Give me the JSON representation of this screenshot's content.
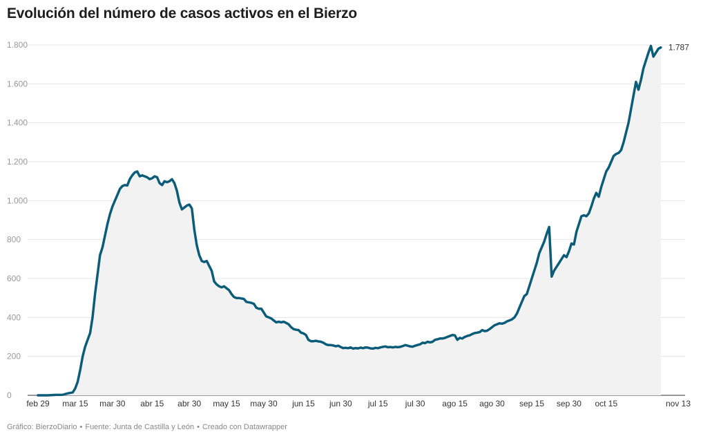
{
  "header": {
    "title": "Evolución del número de casos activos en el Bierzo"
  },
  "footer": {
    "chart_credit": "Gráfico: BierzoDiario",
    "source": "Fuente: Junta de Castilla y León",
    "tool": "Creado con Datawrapper",
    "separator": "•"
  },
  "colors": {
    "line": "#0b5c78",
    "area": "#f2f2f2",
    "grid": "#e5e5e5",
    "axis": "#333333"
  },
  "chart_data": {
    "type": "area",
    "title": "Evolución del número de casos activos en el Bierzo",
    "xlabel": "",
    "ylabel": "",
    "x_start": "2020-02-29",
    "ylim": [
      0,
      1800
    ],
    "y_ticks": [
      0,
      200,
      400,
      600,
      800,
      1000,
      1200,
      1400,
      1600,
      1800
    ],
    "y_tick_labels": [
      "0",
      "200",
      "400",
      "600",
      "800",
      "1.000",
      "1.200",
      "1.400",
      "1.600",
      "1.800"
    ],
    "x_ticks": [
      {
        "date": "2020-02-29",
        "label": "feb 29"
      },
      {
        "date": "2020-03-15",
        "label": "mar 15"
      },
      {
        "date": "2020-03-30",
        "label": "mar 30"
      },
      {
        "date": "2020-04-15",
        "label": "abr 15"
      },
      {
        "date": "2020-04-30",
        "label": "abr 30"
      },
      {
        "date": "2020-05-15",
        "label": "may 15"
      },
      {
        "date": "2020-05-30",
        "label": "may 30"
      },
      {
        "date": "2020-06-15",
        "label": "jun 15"
      },
      {
        "date": "2020-06-30",
        "label": "jun 30"
      },
      {
        "date": "2020-07-15",
        "label": "jul 15"
      },
      {
        "date": "2020-07-30",
        "label": "jul 30"
      },
      {
        "date": "2020-08-15",
        "label": "ago 15"
      },
      {
        "date": "2020-08-30",
        "label": "ago 30"
      },
      {
        "date": "2020-09-15",
        "label": "sep 15"
      },
      {
        "date": "2020-09-30",
        "label": "sep 30"
      },
      {
        "date": "2020-10-15",
        "label": "oct 15"
      },
      {
        "date": "2020-11-13",
        "label": "nov 13"
      }
    ],
    "grid": true,
    "end_label": "1.787",
    "series": [
      {
        "name": "",
        "points": [
          [
            "2020-02-29",
            0
          ],
          [
            "2020-03-04",
            0
          ],
          [
            "2020-03-07",
            2
          ],
          [
            "2020-03-10",
            3
          ],
          [
            "2020-03-12",
            10
          ],
          [
            "2020-03-14",
            15
          ],
          [
            "2020-03-15",
            35
          ],
          [
            "2020-03-16",
            70
          ],
          [
            "2020-03-17",
            130
          ],
          [
            "2020-03-18",
            200
          ],
          [
            "2020-03-19",
            250
          ],
          [
            "2020-03-20",
            285
          ],
          [
            "2020-03-21",
            320
          ],
          [
            "2020-03-22",
            400
          ],
          [
            "2020-03-23",
            520
          ],
          [
            "2020-03-24",
            620
          ],
          [
            "2020-03-25",
            720
          ],
          [
            "2020-03-26",
            760
          ],
          [
            "2020-03-27",
            820
          ],
          [
            "2020-03-28",
            880
          ],
          [
            "2020-03-29",
            930
          ],
          [
            "2020-03-30",
            970
          ],
          [
            "2020-04-01",
            1030
          ],
          [
            "2020-04-02",
            1060
          ],
          [
            "2020-04-03",
            1075
          ],
          [
            "2020-04-04",
            1080
          ],
          [
            "2020-04-05",
            1078
          ],
          [
            "2020-04-06",
            1110
          ],
          [
            "2020-04-07",
            1130
          ],
          [
            "2020-04-08",
            1145
          ],
          [
            "2020-04-09",
            1150
          ],
          [
            "2020-04-10",
            1125
          ],
          [
            "2020-04-11",
            1130
          ],
          [
            "2020-04-12",
            1125
          ],
          [
            "2020-04-13",
            1120
          ],
          [
            "2020-04-14",
            1110
          ],
          [
            "2020-04-15",
            1115
          ],
          [
            "2020-04-16",
            1125
          ],
          [
            "2020-04-17",
            1120
          ],
          [
            "2020-04-18",
            1090
          ],
          [
            "2020-04-19",
            1080
          ],
          [
            "2020-04-20",
            1100
          ],
          [
            "2020-04-21",
            1095
          ],
          [
            "2020-04-22",
            1100
          ],
          [
            "2020-04-23",
            1110
          ],
          [
            "2020-04-24",
            1090
          ],
          [
            "2020-04-25",
            1050
          ],
          [
            "2020-04-26",
            990
          ],
          [
            "2020-04-27",
            955
          ],
          [
            "2020-04-28",
            965
          ],
          [
            "2020-04-29",
            975
          ],
          [
            "2020-04-30",
            980
          ],
          [
            "2020-05-01",
            960
          ],
          [
            "2020-05-02",
            850
          ],
          [
            "2020-05-03",
            770
          ],
          [
            "2020-05-04",
            720
          ],
          [
            "2020-05-05",
            690
          ],
          [
            "2020-05-06",
            685
          ],
          [
            "2020-05-07",
            690
          ],
          [
            "2020-05-08",
            665
          ],
          [
            "2020-05-09",
            640
          ],
          [
            "2020-05-10",
            585
          ],
          [
            "2020-05-11",
            570
          ],
          [
            "2020-05-12",
            560
          ],
          [
            "2020-05-13",
            555
          ],
          [
            "2020-05-14",
            560
          ],
          [
            "2020-05-15",
            550
          ],
          [
            "2020-05-16",
            540
          ],
          [
            "2020-05-17",
            520
          ],
          [
            "2020-05-18",
            505
          ],
          [
            "2020-05-19",
            500
          ],
          [
            "2020-05-20",
            500
          ],
          [
            "2020-05-22",
            495
          ],
          [
            "2020-05-23",
            480
          ],
          [
            "2020-05-25",
            475
          ],
          [
            "2020-05-26",
            470
          ],
          [
            "2020-05-27",
            450
          ],
          [
            "2020-05-28",
            445
          ],
          [
            "2020-05-29",
            445
          ],
          [
            "2020-05-30",
            425
          ],
          [
            "2020-05-31",
            405
          ],
          [
            "2020-06-01",
            400
          ],
          [
            "2020-06-02",
            395
          ],
          [
            "2020-06-03",
            385
          ],
          [
            "2020-06-04",
            375
          ],
          [
            "2020-06-05",
            378
          ],
          [
            "2020-06-06",
            375
          ],
          [
            "2020-06-07",
            378
          ],
          [
            "2020-06-08",
            372
          ],
          [
            "2020-06-09",
            365
          ],
          [
            "2020-06-10",
            350
          ],
          [
            "2020-06-11",
            340
          ],
          [
            "2020-06-12",
            337
          ],
          [
            "2020-06-13",
            335
          ],
          [
            "2020-06-14",
            322
          ],
          [
            "2020-06-15",
            318
          ],
          [
            "2020-06-16",
            310
          ],
          [
            "2020-06-17",
            285
          ],
          [
            "2020-06-18",
            278
          ],
          [
            "2020-06-19",
            278
          ],
          [
            "2020-06-20",
            280
          ],
          [
            "2020-06-21",
            277
          ],
          [
            "2020-06-22",
            275
          ],
          [
            "2020-06-23",
            270
          ],
          [
            "2020-06-24",
            262
          ],
          [
            "2020-06-25",
            258
          ],
          [
            "2020-06-26",
            258
          ],
          [
            "2020-06-27",
            256
          ],
          [
            "2020-06-28",
            252
          ],
          [
            "2020-06-29",
            255
          ],
          [
            "2020-06-30",
            248
          ],
          [
            "2020-07-01",
            243
          ],
          [
            "2020-07-02",
            244
          ],
          [
            "2020-07-03",
            242
          ],
          [
            "2020-07-04",
            246
          ],
          [
            "2020-07-05",
            240
          ],
          [
            "2020-07-06",
            243
          ],
          [
            "2020-07-07",
            241
          ],
          [
            "2020-07-08",
            245
          ],
          [
            "2020-07-09",
            242
          ],
          [
            "2020-07-10",
            246
          ],
          [
            "2020-07-11",
            245
          ],
          [
            "2020-07-12",
            241
          ],
          [
            "2020-07-13",
            240
          ],
          [
            "2020-07-14",
            244
          ],
          [
            "2020-07-15",
            242
          ],
          [
            "2020-07-16",
            246
          ],
          [
            "2020-07-17",
            249
          ],
          [
            "2020-07-18",
            251
          ],
          [
            "2020-07-19",
            247
          ],
          [
            "2020-07-20",
            248
          ],
          [
            "2020-07-21",
            246
          ],
          [
            "2020-07-22",
            249
          ],
          [
            "2020-07-23",
            247
          ],
          [
            "2020-07-24",
            249
          ],
          [
            "2020-07-25",
            253
          ],
          [
            "2020-07-26",
            258
          ],
          [
            "2020-07-27",
            255
          ],
          [
            "2020-07-28",
            251
          ],
          [
            "2020-07-29",
            250
          ],
          [
            "2020-07-30",
            255
          ],
          [
            "2020-08-01",
            262
          ],
          [
            "2020-08-02",
            270
          ],
          [
            "2020-08-03",
            268
          ],
          [
            "2020-08-04",
            275
          ],
          [
            "2020-08-05",
            272
          ],
          [
            "2020-08-06",
            275
          ],
          [
            "2020-08-07",
            285
          ],
          [
            "2020-08-08",
            288
          ],
          [
            "2020-08-09",
            292
          ],
          [
            "2020-08-10",
            292
          ],
          [
            "2020-08-11",
            295
          ],
          [
            "2020-08-12",
            300
          ],
          [
            "2020-08-13",
            305
          ],
          [
            "2020-08-14",
            310
          ],
          [
            "2020-08-15",
            308
          ],
          [
            "2020-08-16",
            285
          ],
          [
            "2020-08-17",
            295
          ],
          [
            "2020-08-18",
            292
          ],
          [
            "2020-08-19",
            300
          ],
          [
            "2020-08-20",
            305
          ],
          [
            "2020-08-21",
            308
          ],
          [
            "2020-08-22",
            315
          ],
          [
            "2020-08-23",
            320
          ],
          [
            "2020-08-24",
            322
          ],
          [
            "2020-08-25",
            325
          ],
          [
            "2020-08-26",
            335
          ],
          [
            "2020-08-27",
            330
          ],
          [
            "2020-08-28",
            332
          ],
          [
            "2020-08-29",
            340
          ],
          [
            "2020-08-30",
            350
          ],
          [
            "2020-08-31",
            360
          ],
          [
            "2020-09-01",
            365
          ],
          [
            "2020-09-02",
            370
          ],
          [
            "2020-09-03",
            368
          ],
          [
            "2020-09-04",
            372
          ],
          [
            "2020-09-05",
            380
          ],
          [
            "2020-09-06",
            385
          ],
          [
            "2020-09-07",
            390
          ],
          [
            "2020-09-08",
            400
          ],
          [
            "2020-09-09",
            420
          ],
          [
            "2020-09-10",
            450
          ],
          [
            "2020-09-11",
            480
          ],
          [
            "2020-09-12",
            510
          ],
          [
            "2020-09-13",
            520
          ],
          [
            "2020-09-14",
            560
          ],
          [
            "2020-09-15",
            600
          ],
          [
            "2020-09-16",
            640
          ],
          [
            "2020-09-17",
            680
          ],
          [
            "2020-09-18",
            730
          ],
          [
            "2020-09-19",
            760
          ],
          [
            "2020-09-20",
            790
          ],
          [
            "2020-09-21",
            830
          ],
          [
            "2020-09-22",
            865
          ],
          [
            "2020-09-23",
            610
          ],
          [
            "2020-09-24",
            640
          ],
          [
            "2020-09-25",
            660
          ],
          [
            "2020-09-26",
            680
          ],
          [
            "2020-09-27",
            700
          ],
          [
            "2020-09-28",
            720
          ],
          [
            "2020-09-29",
            710
          ],
          [
            "2020-09-30",
            740
          ],
          [
            "2020-10-01",
            780
          ],
          [
            "2020-10-02",
            775
          ],
          [
            "2020-10-03",
            840
          ],
          [
            "2020-10-04",
            880
          ],
          [
            "2020-10-05",
            920
          ],
          [
            "2020-10-06",
            925
          ],
          [
            "2020-10-07",
            920
          ],
          [
            "2020-10-08",
            935
          ],
          [
            "2020-10-09",
            970
          ],
          [
            "2020-10-10",
            1010
          ],
          [
            "2020-10-11",
            1040
          ],
          [
            "2020-10-12",
            1020
          ],
          [
            "2020-10-13",
            1070
          ],
          [
            "2020-10-14",
            1110
          ],
          [
            "2020-10-15",
            1150
          ],
          [
            "2020-10-16",
            1170
          ],
          [
            "2020-10-17",
            1200
          ],
          [
            "2020-10-18",
            1230
          ],
          [
            "2020-10-19",
            1240
          ],
          [
            "2020-10-20",
            1245
          ],
          [
            "2020-10-21",
            1260
          ],
          [
            "2020-10-22",
            1300
          ],
          [
            "2020-10-23",
            1350
          ],
          [
            "2020-10-24",
            1400
          ],
          [
            "2020-10-25",
            1470
          ],
          [
            "2020-10-26",
            1540
          ],
          [
            "2020-10-27",
            1610
          ],
          [
            "2020-10-28",
            1570
          ],
          [
            "2020-10-29",
            1620
          ],
          [
            "2020-10-30",
            1680
          ],
          [
            "2020-10-31",
            1720
          ],
          [
            "2020-11-01",
            1760
          ],
          [
            "2020-11-02",
            1795
          ],
          [
            "2020-11-03",
            1740
          ],
          [
            "2020-11-04",
            1760
          ],
          [
            "2020-11-05",
            1780
          ],
          [
            "2020-11-06",
            1787
          ]
        ]
      }
    ]
  }
}
